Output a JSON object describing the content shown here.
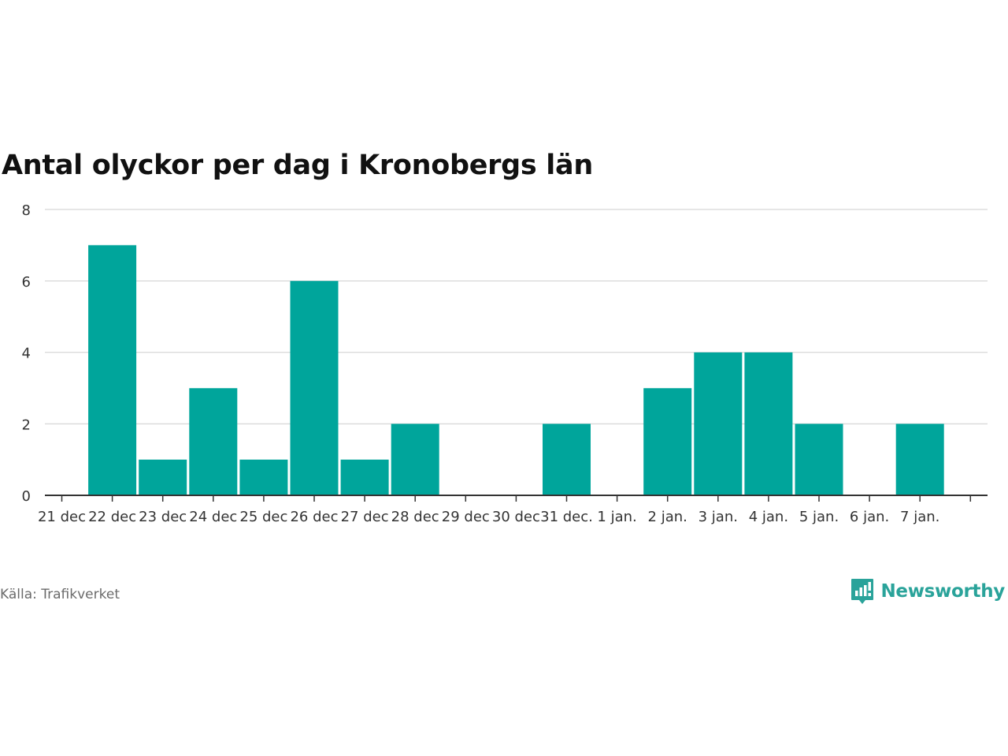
{
  "title": "Antal olyckor per dag i Kronobergs län",
  "source": "Källa: Trafikverket",
  "brand": {
    "name": "Newsworthy",
    "icon": "newsworthy-logo-icon"
  },
  "colors": {
    "bar": "#00a59b",
    "grid": "#dddddd",
    "axis": "#333333",
    "text": "#333333",
    "brand": "#2aa39a"
  },
  "chart_data": {
    "type": "bar",
    "categories": [
      "21 dec",
      "22 dec",
      "23 dec",
      "24 dec",
      "25 dec",
      "26 dec",
      "27 dec",
      "28 dec",
      "29 dec",
      "30 dec",
      "31 dec.",
      "1 jan.",
      "2 jan.",
      "3 jan.",
      "4 jan.",
      "5 jan.",
      "6 jan.",
      "7 jan."
    ],
    "values": [
      0,
      7,
      1,
      3,
      1,
      6,
      1,
      2,
      0,
      0,
      2,
      0,
      3,
      4,
      4,
      2,
      0,
      2
    ],
    "ylim": [
      0,
      8
    ],
    "yticks": [
      0,
      2,
      4,
      6,
      8
    ],
    "grid": true,
    "legend": "none"
  }
}
